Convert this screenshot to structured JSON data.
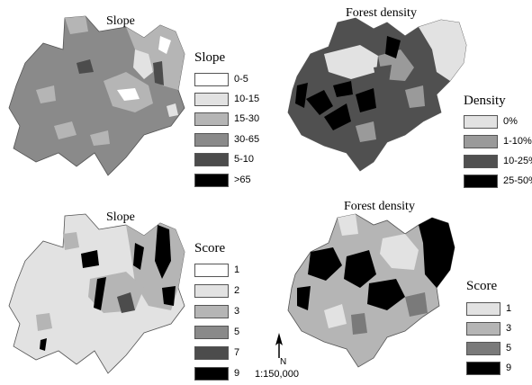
{
  "maps": [
    {
      "title": "Slope",
      "legend_title": "Slope",
      "legend": [
        {
          "label": "0-5",
          "color": "#ffffff"
        },
        {
          "label": "10-15",
          "color": "#e2e2e2"
        },
        {
          "label": "15-30",
          "color": "#b5b5b5"
        },
        {
          "label": "30-65",
          "color": "#8a8a8a"
        },
        {
          "label": "5-10",
          "color": "#4c4c4c"
        },
        {
          "label": ">65",
          "color": "#000000"
        }
      ]
    },
    {
      "title": "Forest density",
      "legend_title": "Density",
      "legend": [
        {
          "label": "0%",
          "color": "#e2e2e2"
        },
        {
          "label": "1-10%",
          "color": "#9a9a9a"
        },
        {
          "label": "10-25%",
          "color": "#505050"
        },
        {
          "label": "25-50%",
          "color": "#000000"
        }
      ]
    },
    {
      "title": "Slope",
      "legend_title": "Score",
      "legend": [
        {
          "label": "1",
          "color": "#ffffff"
        },
        {
          "label": "2",
          "color": "#e2e2e2"
        },
        {
          "label": "3",
          "color": "#b5b5b5"
        },
        {
          "label": "5",
          "color": "#8a8a8a"
        },
        {
          "label": "7",
          "color": "#4c4c4c"
        },
        {
          "label": "9",
          "color": "#000000"
        }
      ]
    },
    {
      "title": "Forest density",
      "legend_title": "Score",
      "legend": [
        {
          "label": "1",
          "color": "#e2e2e2"
        },
        {
          "label": "3",
          "color": "#b5b5b5"
        },
        {
          "label": "5",
          "color": "#7a7a7a"
        },
        {
          "label": "9",
          "color": "#000000"
        }
      ]
    }
  ],
  "scale_text": "1:150,000",
  "north_label": "N",
  "north_arrow_icon": "north-arrow-icon"
}
